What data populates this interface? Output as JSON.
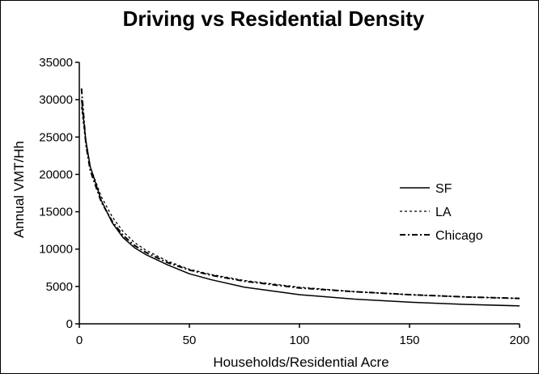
{
  "chart_data": {
    "type": "line",
    "title": "Driving vs Residential Density",
    "xlabel": "Households/Residential Acre",
    "ylabel": "Annual VMT/Hh",
    "xlim": [
      0,
      200
    ],
    "ylim": [
      0,
      35000
    ],
    "xticks": [
      0,
      50,
      100,
      150,
      200
    ],
    "yticks": [
      0,
      5000,
      10000,
      15000,
      20000,
      25000,
      30000,
      35000
    ],
    "xtick_labels": [
      "0",
      "50",
      "100",
      "150",
      "200"
    ],
    "ytick_labels": [
      "0",
      "5000",
      "10000",
      "15000",
      "20000",
      "25000",
      "30000",
      "35000"
    ],
    "grid": false,
    "legend_position": "right",
    "series": [
      {
        "name": "SF",
        "style": "solid",
        "x": [
          1,
          3,
          5,
          10,
          15,
          20,
          25,
          30,
          40,
          50,
          60,
          75,
          100,
          125,
          150,
          175,
          200
        ],
        "y": [
          30000,
          24500,
          21000,
          16500,
          13500,
          11500,
          10200,
          9300,
          7900,
          6700,
          5900,
          4900,
          3900,
          3300,
          2900,
          2600,
          2400
        ]
      },
      {
        "name": "LA",
        "style": "dotted",
        "x": [
          1,
          3,
          5,
          10,
          15,
          20,
          25,
          30,
          40,
          50,
          60,
          75,
          100,
          125,
          150,
          175,
          200
        ],
        "y": [
          29000,
          24000,
          21000,
          17000,
          14300,
          12300,
          10900,
          9900,
          8400,
          7300,
          6600,
          5800,
          4900,
          4300,
          3900,
          3600,
          3400
        ]
      },
      {
        "name": "Chicago",
        "style": "dashdot",
        "x": [
          1,
          3,
          5,
          10,
          15,
          20,
          25,
          30,
          40,
          50,
          60,
          75,
          100,
          125,
          150,
          175,
          200
        ],
        "y": [
          31500,
          24000,
          20500,
          16300,
          13700,
          11800,
          10500,
          9600,
          8200,
          7200,
          6500,
          5700,
          4800,
          4300,
          3900,
          3600,
          3400
        ]
      }
    ]
  }
}
